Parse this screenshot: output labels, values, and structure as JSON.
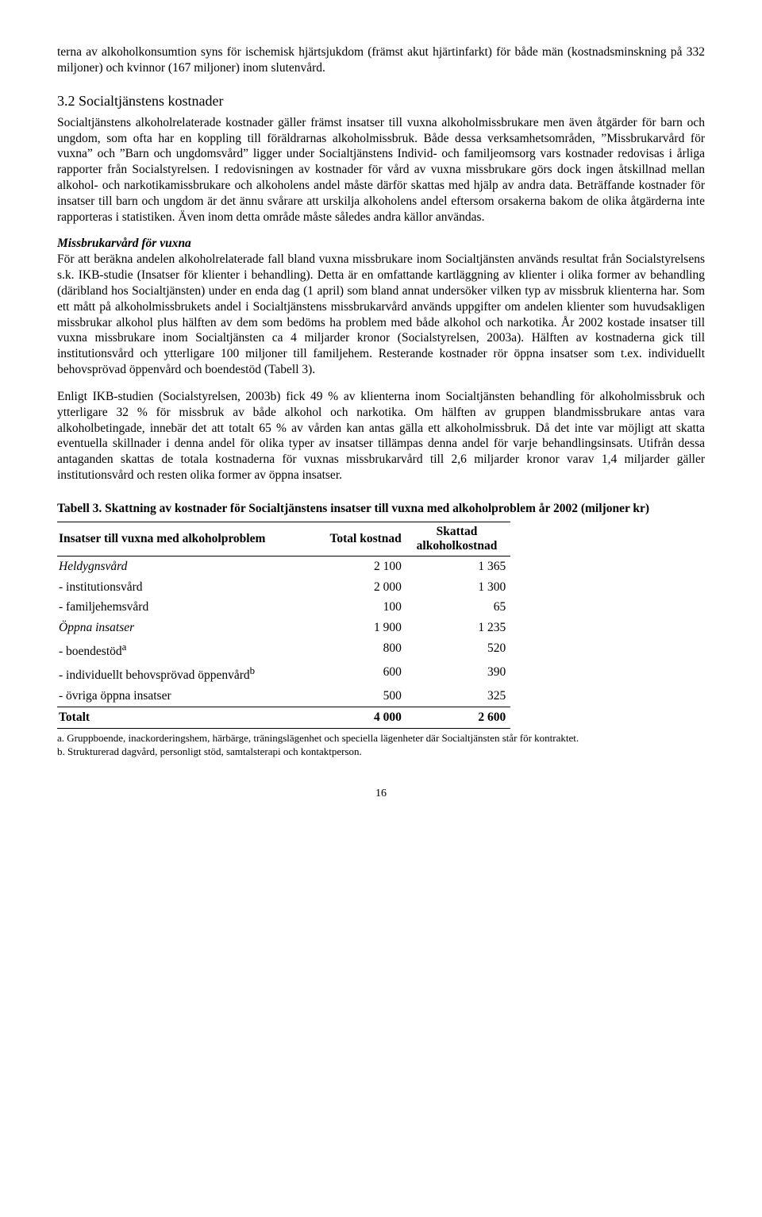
{
  "intro_para": "terna av alkoholkonsumtion syns för ischemisk hjärtsjukdom (främst akut hjärtinfarkt) för både män (kostnadsminskning på 332 miljoner) och kvinnor (167 miljoner) inom slutenvård.",
  "section_heading": "3.2 Socialtjänstens kostnader",
  "para1": "Socialtjänstens alkoholrelaterade kostnader gäller främst insatser till vuxna alkoholmissbrukare men även åtgärder för barn och ungdom, som ofta har en koppling till föräldrarnas alkoholmissbruk. Både dessa verksamhetsområden, ”Missbrukarvård för vuxna” och ”Barn och ungdomsvård” ligger under Socialtjänstens Individ- och familjeomsorg vars kostnader redovisas i årliga rapporter från Socialstyrelsen. I redovisningen av kostnader för vård av vuxna missbrukare görs dock ingen åtskillnad mellan alkohol- och narkotikamissbrukare och alkoholens andel måste därför skattas med hjälp av andra data. Beträffande kostnader för insatser till barn och ungdom är det ännu svårare att urskilja alkoholens andel eftersom orsakerna bakom de olika åtgärderna inte rapporteras i statistiken. Även inom detta område måste således andra källor användas.",
  "subhead1": "Missbrukarvård för vuxna",
  "para2": "För att beräkna andelen alkoholrelaterade fall bland vuxna missbrukare inom Socialtjänsten används resultat från Socialstyrelsens s.k. IKB-studie (Insatser för klienter i behandling). Detta är en omfattande kartläggning av klienter i olika former av behandling (däribland hos Socialtjänsten) under en enda dag (1 april) som bland annat undersöker vilken typ av missbruk klienterna har. Som ett mått på alkoholmissbrukets andel i Socialtjänstens missbrukarvård används uppgifter om andelen klienter som huvudsakligen missbrukar alkohol plus hälften av dem som bedöms ha problem med både alkohol och narkotika. År 2002 kostade insatser till vuxna missbrukare inom Socialtjänsten ca 4 miljarder kronor (Socialstyrelsen, 2003a). Hälften av kostnaderna gick till institutionsvård och ytterligare 100 miljoner till familjehem. Resterande kostnader rör öppna insatser som t.ex. individuellt behovsprövad öppenvård och boendestöd (Tabell 3).",
  "para3": "Enligt IKB-studien (Socialstyrelsen, 2003b) fick 49 % av klienterna inom Socialtjänsten behandling för alkoholmissbruk och ytterligare 32 % för missbruk av både alkohol och narkotika. Om hälften av gruppen blandmissbrukare antas vara alkoholbetingade, innebär det att totalt 65 % av vården kan antas gälla ett alkoholmissbruk. Då det inte var möjligt att skatta eventuella skillnader i denna andel för olika typer av insatser tillämpas denna andel för varje behandlingsinsats. Utifrån dessa antaganden skattas de totala kostnaderna för vuxnas missbrukarvård till 2,6 miljarder kronor varav 1,4 miljarder gäller institutionsvård och resten olika former av öppna insatser.",
  "table": {
    "caption": "Tabell 3. Skattning av kostnader för Socialtjänstens insatser till vuxna med alkoholproblem år 2002 (miljoner kr)",
    "col1_header": "Insatser till vuxna med alkoholproblem",
    "col2_header": "Total kostnad",
    "col3_header_line1": "Skattad",
    "col3_header_line2": "alkoholkostnad",
    "rows": [
      {
        "label": "Heldygnsvård",
        "total": "2 100",
        "skattad": "1 365",
        "italic": true
      },
      {
        "label": "- institutionsvård",
        "total": "2 000",
        "skattad": "1 300",
        "italic": false
      },
      {
        "label": "- familjehemsvård",
        "total": "100",
        "skattad": "65",
        "italic": false
      },
      {
        "label": "Öppna insatser",
        "total": "1 900",
        "skattad": "1 235",
        "italic": true
      },
      {
        "label": "- boendestöd",
        "sup": "a",
        "total": "800",
        "skattad": "520",
        "italic": false
      },
      {
        "label": "- individuellt behovsprövad öppenvård",
        "sup": "b",
        "total": "600",
        "skattad": "390",
        "italic": false
      },
      {
        "label": "- övriga öppna insatser",
        "total": "500",
        "skattad": "325",
        "italic": false
      }
    ],
    "total_row": {
      "label": "Totalt",
      "total": "4 000",
      "skattad": "2 600"
    },
    "footnote_a": "a. Gruppboende, inackorderingshem, härbärge, träningslägenhet och speciella lägenheter där Socialtjänsten står för kontraktet.",
    "footnote_b": "b. Strukturerad dagvård, personligt stöd, samtalsterapi och kontaktperson."
  },
  "page_number": "16"
}
